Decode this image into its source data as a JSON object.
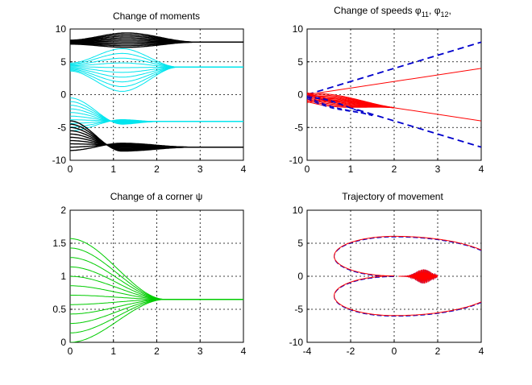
{
  "figure": {
    "background": "#ffffff"
  },
  "chart_data": [
    {
      "type": "line",
      "title": "Change of moments",
      "xlim": [
        0,
        4
      ],
      "ylim": [
        -10,
        10
      ],
      "xticks": [
        0,
        1,
        2,
        3,
        4
      ],
      "yticks": [
        10,
        5,
        0,
        -5,
        -10
      ],
      "grid": true,
      "series": [
        {
          "kind": "bundle",
          "color": "#000000",
          "width": 1.4,
          "count": 10,
          "start_range": [
            7.7,
            8.3
          ],
          "spread": [
            7.2,
            9.4
          ],
          "converge": 8.0,
          "peak_x": 1.3,
          "settle_x": 2.9,
          "end_x": 4
        },
        {
          "kind": "bundle",
          "color": "#00e5ee",
          "width": 1.0,
          "count": 10,
          "start_range": [
            3.6,
            4.8
          ],
          "spread": [
            0.5,
            7.0
          ],
          "converge": 4.2,
          "peak_x": 1.2,
          "settle_x": 2.5,
          "end_x": 4
        },
        {
          "kind": "bundle",
          "color": "#00e5ee",
          "width": 1.0,
          "count": 10,
          "start_range": [
            -0.5,
            -5.5
          ],
          "spread": [
            -4.5,
            -3.8
          ],
          "converge": -4.1,
          "peak_x": 1.2,
          "settle_x": 2.0,
          "end_x": 4
        },
        {
          "kind": "bundle",
          "color": "#000000",
          "width": 1.4,
          "count": 10,
          "start_range": [
            -4.0,
            -8.5
          ],
          "spread": [
            -8.6,
            -7.4
          ],
          "converge": -8.0,
          "peak_x": 1.2,
          "settle_x": 2.8,
          "end_x": 4
        }
      ]
    },
    {
      "type": "line",
      "title": "Change of speeds  φ11, φ12,",
      "xlim": [
        0,
        4
      ],
      "ylim": [
        -10,
        10
      ],
      "xticks": [
        0,
        1,
        2,
        3,
        4
      ],
      "yticks": [
        10,
        5,
        0,
        -5,
        -10
      ],
      "grid": true,
      "series": [
        {
          "kind": "line",
          "color": "#0000cc",
          "dash": true,
          "width": 1.8,
          "x": [
            0,
            4
          ],
          "y": [
            0,
            8
          ]
        },
        {
          "kind": "line",
          "color": "#0000cc",
          "dash": true,
          "width": 1.8,
          "x": [
            0,
            4
          ],
          "y": [
            0,
            -8
          ]
        },
        {
          "kind": "line",
          "color": "#ff0000",
          "width": 1.0,
          "x": [
            0,
            4
          ],
          "y": [
            0,
            4
          ]
        },
        {
          "kind": "line",
          "color": "#ff0000",
          "width": 1.0,
          "x": [
            0,
            4
          ],
          "y": [
            0,
            -4
          ]
        },
        {
          "kind": "fan",
          "color": "#ff0000",
          "count": 14,
          "from_y": [
            0.3,
            -1.2
          ],
          "to_x": 2.0,
          "to_y": -2.0
        },
        {
          "kind": "fan",
          "color": "#0000cc",
          "count": 5,
          "from_y": [
            -0.2,
            -0.6
          ],
          "to_x": 1.5,
          "to_y": -3.2,
          "dash": true
        }
      ]
    },
    {
      "type": "line",
      "title": "Change of a corner  ψ",
      "xlim": [
        0,
        4
      ],
      "ylim": [
        0,
        2
      ],
      "xticks": [
        0,
        1,
        2,
        3,
        4
      ],
      "yticks": [
        "2",
        "1.5",
        "1",
        "0.5",
        "0"
      ],
      "ytick_values": [
        2,
        1.5,
        1,
        0.5,
        0
      ],
      "grid": true,
      "series": [
        {
          "kind": "bundle_green",
          "color": "#00cc00",
          "count": 12,
          "start_range": [
            0.0,
            1.57
          ],
          "converge": 0.65,
          "settle_x": 2.2,
          "end_x": 4
        }
      ]
    },
    {
      "type": "line",
      "title": "Trajectory of movement",
      "xlim": [
        -4,
        4
      ],
      "ylim": [
        -10,
        10
      ],
      "xticks": [
        -4,
        -2,
        0,
        2,
        4
      ],
      "yticks": [
        10,
        5,
        0,
        -5,
        -10
      ],
      "grid": true,
      "series": [
        {
          "kind": "trajectory",
          "colors": [
            "#0000cc",
            "#ff0000"
          ],
          "radius_x": 2.9,
          "radius_y": 3.0,
          "center_y": [
            3.0,
            -3.0
          ]
        }
      ]
    }
  ]
}
